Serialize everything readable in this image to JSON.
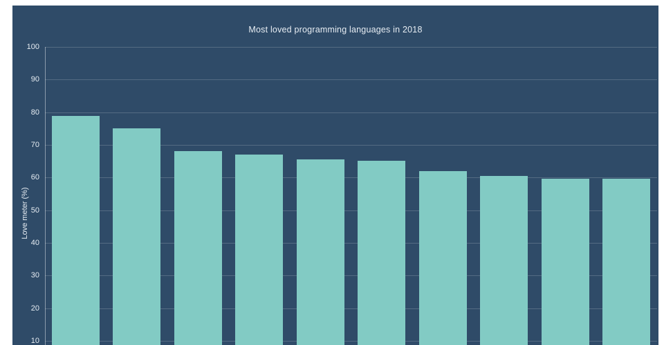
{
  "chart_data": {
    "type": "bar",
    "title": "Most loved programming languages in 2018",
    "xlabel": "",
    "ylabel": "Love meter (%)",
    "categories": [
      "",
      "",
      "",
      "",
      "",
      "",
      "",
      "",
      "",
      ""
    ],
    "values": [
      78.9,
      75.1,
      68.0,
      67.0,
      65.6,
      65.1,
      61.9,
      60.4,
      59.6,
      59.6
    ],
    "yticks": [
      10,
      20,
      30,
      40,
      50,
      60,
      70,
      80,
      90,
      100
    ],
    "visible_ylim": [
      10,
      100
    ],
    "grid": "horizontal",
    "legend": "none",
    "colors": {
      "background": "#2f4b68",
      "bar": "#82cbc4",
      "text": "#e7edf3",
      "gridline": "rgba(255,255,255,0.18)"
    },
    "note_axis_cut": "x-axis category labels are cut off below the visible area"
  }
}
